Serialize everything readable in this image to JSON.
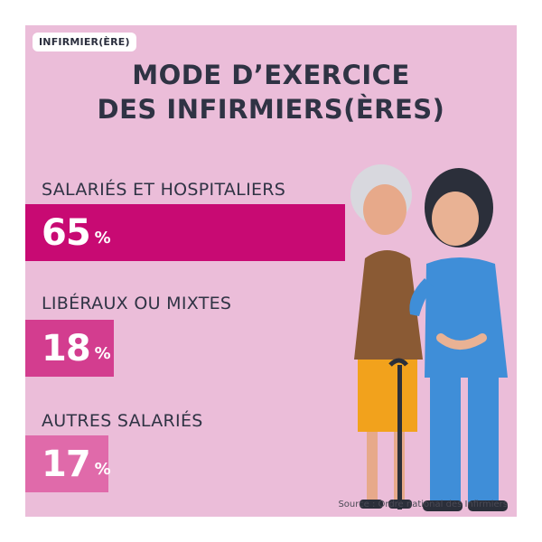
{
  "badge": "INFIRMIER(ÈRE)",
  "title_line1": "MODE D’EXERCICE",
  "title_line2": "DES INFIRMIERS(ÈRES)",
  "source": "Source : Ordre national des Infirmiers",
  "colors": {
    "background": "#ebbdd9",
    "bar1": "#c80a73",
    "bar2": "#d33d8f",
    "bar3": "#e06aaa",
    "text": "#2f3344"
  },
  "chart_data": {
    "type": "bar",
    "orientation": "horizontal",
    "categories": [
      "SALARIÉS ET HOSPITALIERS",
      "LIBÉRAUX OU MIXTES",
      "AUTRES SALARIÉS"
    ],
    "values": [
      65,
      18,
      17
    ],
    "value_labels": [
      "65",
      "18",
      "17"
    ],
    "unit": "%",
    "xlim": [
      0,
      100
    ],
    "title": "MODE D’EXERCICE DES INFIRMIERS(ÈRES)"
  }
}
